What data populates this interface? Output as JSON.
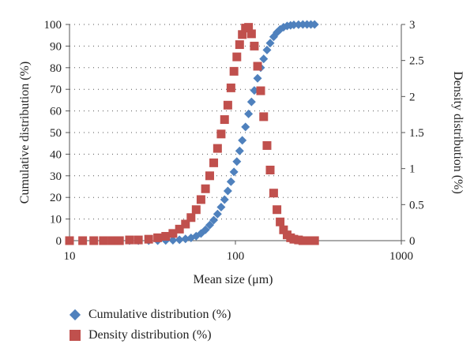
{
  "chart_data": {
    "type": "scatter",
    "title": "",
    "xlabel": "Mean size (μm)",
    "ylabel": "Cumulative distribution (%)",
    "y2label": "Density distribution (%)",
    "xscale": "log",
    "xlim": [
      10,
      1000
    ],
    "ylim": [
      0,
      100
    ],
    "y2lim": [
      0,
      3
    ],
    "x_ticks": [
      "10",
      "100",
      "1000"
    ],
    "y_ticks": [
      "0",
      "10",
      "20",
      "30",
      "40",
      "50",
      "60",
      "70",
      "80",
      "90",
      "100"
    ],
    "y2_ticks": [
      "0",
      "0.5",
      "1",
      "1.5",
      "2",
      "2.5",
      "3"
    ],
    "grid": "horizontal dotted",
    "legend_position": "bottom-left",
    "series": [
      {
        "name": "Cumulative distribution (%)",
        "axis": "left",
        "marker": "diamond",
        "color": "#4f81bd",
        "x": [
          10,
          12,
          14,
          16,
          18,
          20,
          23,
          26,
          30,
          34,
          38,
          42,
          46,
          50,
          54,
          58,
          62,
          66,
          70,
          74,
          78,
          82,
          86,
          90,
          94,
          98,
          102,
          106,
          110,
          115,
          120,
          125,
          130,
          136,
          142,
          148,
          155,
          162,
          170,
          178,
          186,
          195,
          205,
          215,
          225,
          240,
          255,
          270,
          285,
          300
        ],
        "y": [
          0,
          0,
          0,
          0,
          0,
          0,
          0,
          0,
          0,
          0,
          0.1,
          0.2,
          0.4,
          0.8,
          1.3,
          2.1,
          3.3,
          5,
          7.2,
          9.5,
          12.3,
          15.5,
          19,
          23,
          27.3,
          31.8,
          36.6,
          41.5,
          46.4,
          52.6,
          58.6,
          64.2,
          69.5,
          75.1,
          80,
          84.1,
          88.2,
          91.4,
          94.3,
          96.3,
          97.7,
          98.7,
          99.3,
          99.6,
          99.8,
          99.9,
          100,
          100,
          100,
          100
        ]
      },
      {
        "name": "Density distribution (%)",
        "axis": "right",
        "marker": "square",
        "color": "#c0504d",
        "x": [
          10,
          12,
          14,
          16,
          18,
          20,
          23,
          26,
          30,
          34,
          38,
          42,
          46,
          50,
          54,
          58,
          62,
          66,
          70,
          74,
          78,
          82,
          86,
          90,
          94,
          98,
          102,
          106,
          110,
          115,
          120,
          125,
          130,
          136,
          142,
          148,
          155,
          162,
          170,
          178,
          186,
          195,
          205,
          215,
          225,
          240,
          255,
          270,
          285,
          300
        ],
        "y": [
          0,
          0,
          0,
          0,
          0,
          0,
          0.01,
          0.01,
          0.02,
          0.04,
          0.06,
          0.1,
          0.16,
          0.23,
          0.32,
          0.43,
          0.57,
          0.72,
          0.9,
          1.08,
          1.28,
          1.48,
          1.68,
          1.88,
          2.12,
          2.35,
          2.55,
          2.72,
          2.86,
          2.95,
          2.96,
          2.87,
          2.7,
          2.42,
          2.08,
          1.72,
          1.32,
          0.98,
          0.66,
          0.43,
          0.26,
          0.15,
          0.08,
          0.04,
          0.02,
          0.01,
          0,
          0,
          0,
          0
        ]
      }
    ]
  }
}
